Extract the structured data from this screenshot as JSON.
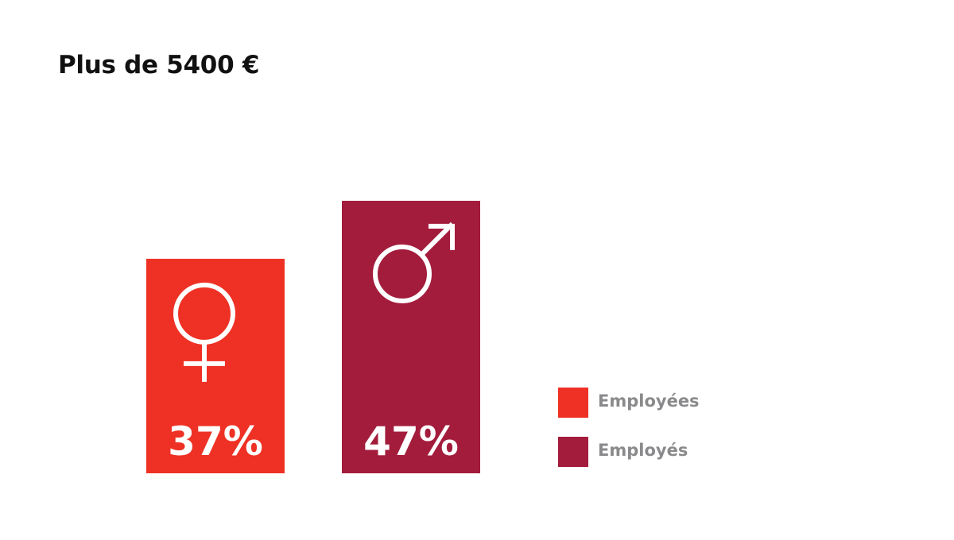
{
  "title": "Plus de 5400 €",
  "chart_data": {
    "type": "bar",
    "title": "Plus de 5400 €",
    "categories": [
      "Employées",
      "Employés"
    ],
    "values": [
      37,
      47
    ],
    "value_labels": [
      "37%",
      "47%"
    ],
    "colors": [
      "#ee3124",
      "#a31c3c"
    ],
    "icons": [
      "female-symbol-icon",
      "male-symbol-icon"
    ],
    "unit": "%",
    "xlabel": "",
    "ylabel": "",
    "ylim": [
      0,
      100
    ],
    "grid": false,
    "legend_position": "right"
  },
  "legend": [
    {
      "label": "Employées",
      "color": "#ee3124"
    },
    {
      "label": "Employés",
      "color": "#a31c3c"
    }
  ]
}
